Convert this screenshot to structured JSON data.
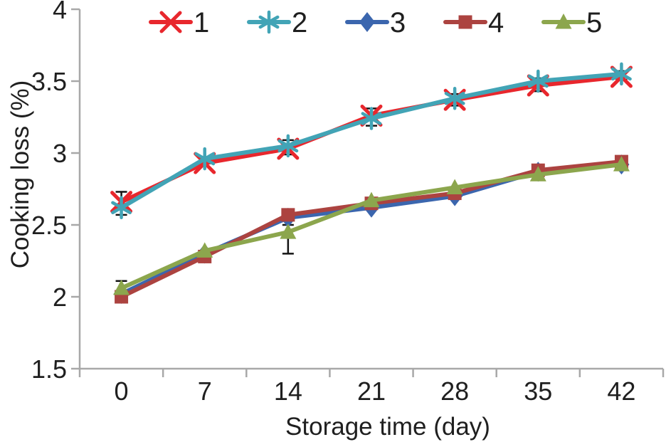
{
  "figure": {
    "background": "#ffffff"
  },
  "chart_data": {
    "type": "line",
    "title": "",
    "xlabel": "Storage time (day)",
    "ylabel": "Cooking loss (%)",
    "x_categories": [
      "0",
      "7",
      "14",
      "21",
      "28",
      "35",
      "42"
    ],
    "x_values": [
      0,
      7,
      14,
      21,
      28,
      35,
      42
    ],
    "ylim": [
      1.5,
      4
    ],
    "ytick_labels": [
      "4",
      "3.5",
      "3",
      "2.5",
      "2",
      "1.5"
    ],
    "ytick_values": [
      4,
      3.5,
      3,
      2.5,
      2,
      1.5
    ],
    "grid": false,
    "legend_position": "top",
    "axis_color": "#a8a8a8",
    "text_color": "#1f1f1f",
    "error_bar_color": "#141414",
    "series": [
      {
        "name": "1",
        "marker": "x-marker",
        "color": "#e8272d",
        "values": [
          2.66,
          2.93,
          3.03,
          3.26,
          3.37,
          3.47,
          3.53
        ]
      },
      {
        "name": "2",
        "marker": "asterisk-marker",
        "color": "#42a4b6",
        "values": [
          2.62,
          2.96,
          3.05,
          3.24,
          3.38,
          3.5,
          3.55
        ]
      },
      {
        "name": "3",
        "marker": "diamond-marker",
        "color": "#3b66ae",
        "values": [
          2.02,
          2.3,
          2.55,
          2.62,
          2.7,
          2.87,
          2.92
        ]
      },
      {
        "name": "4",
        "marker": "square-marker",
        "color": "#ac4340",
        "values": [
          2.0,
          2.28,
          2.57,
          2.65,
          2.72,
          2.88,
          2.94
        ]
      },
      {
        "name": "5",
        "marker": "triangle-marker",
        "color": "#8ca64d",
        "values": [
          2.06,
          2.32,
          2.45,
          2.67,
          2.76,
          2.85,
          2.92
        ]
      }
    ],
    "error_bars": [
      {
        "x": 0,
        "low": 2.57,
        "high": 2.73
      },
      {
        "x": 0,
        "low": 2.0,
        "high": 2.11
      },
      {
        "x": 14,
        "low": 2.99,
        "high": 3.09
      },
      {
        "x": 14,
        "low": 2.3,
        "high": 2.5
      },
      {
        "x": 21,
        "low": 3.19,
        "high": 3.31
      },
      {
        "x": 28,
        "low": 3.33,
        "high": 3.41
      },
      {
        "x": 35,
        "low": 3.43,
        "high": 3.52
      },
      {
        "x": 42,
        "low": 3.51,
        "high": 3.57
      }
    ]
  }
}
